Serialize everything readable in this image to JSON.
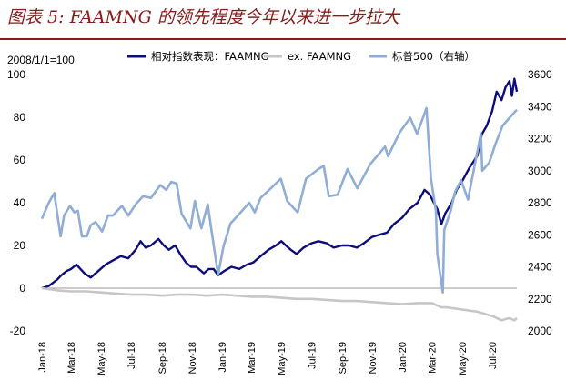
{
  "title": "图表 5: FAAMNG 的领先程度今年以来进一步拉大",
  "chart_data": {
    "type": "line",
    "unit_note": "2008/1/1=100",
    "left_axis": {
      "min": -20,
      "max": 100,
      "ticks": [
        -20,
        0,
        20,
        40,
        60,
        80,
        100
      ],
      "negative_color": "#c00000"
    },
    "right_axis": {
      "min": 2000,
      "max": 3600,
      "ticks": [
        2000,
        2200,
        2400,
        2600,
        2800,
        3000,
        3200,
        3400,
        3600
      ]
    },
    "x_ticks": [
      "Jan-18",
      "Mar-18",
      "May-18",
      "Jul-18",
      "Sep-18",
      "Nov-18",
      "Jan-19",
      "Mar-19",
      "May-19",
      "Jul-19",
      "Sep-19",
      "Nov-19",
      "Jan-20",
      "Mar-20",
      "May-20",
      "Jul-20"
    ],
    "x_range": [
      "2018-01-01",
      "2020-08-20"
    ],
    "legend_position": "top",
    "series": [
      {
        "name": "相对指数表现：FAAMNG",
        "axis": "left",
        "color": "#0d0d7a",
        "points": [
          [
            "2018-01-01",
            0
          ],
          [
            "2018-01-15",
            1
          ],
          [
            "2018-02-01",
            4
          ],
          [
            "2018-02-09",
            6
          ],
          [
            "2018-02-20",
            8
          ],
          [
            "2018-03-01",
            9
          ],
          [
            "2018-03-12",
            11
          ],
          [
            "2018-03-28",
            7
          ],
          [
            "2018-04-10",
            5
          ],
          [
            "2018-04-25",
            8
          ],
          [
            "2018-05-10",
            11
          ],
          [
            "2018-05-25",
            13
          ],
          [
            "2018-06-10",
            15
          ],
          [
            "2018-06-25",
            14
          ],
          [
            "2018-07-10",
            18
          ],
          [
            "2018-07-20",
            22
          ],
          [
            "2018-07-30",
            19
          ],
          [
            "2018-08-10",
            20
          ],
          [
            "2018-08-25",
            23
          ],
          [
            "2018-09-05",
            20
          ],
          [
            "2018-09-15",
            18
          ],
          [
            "2018-09-28",
            20
          ],
          [
            "2018-10-08",
            16
          ],
          [
            "2018-10-20",
            12
          ],
          [
            "2018-10-30",
            10
          ],
          [
            "2018-11-10",
            10
          ],
          [
            "2018-11-25",
            7
          ],
          [
            "2018-12-05",
            9
          ],
          [
            "2018-12-15",
            9
          ],
          [
            "2018-12-24",
            6
          ],
          [
            "2019-01-05",
            8
          ],
          [
            "2019-01-20",
            10
          ],
          [
            "2019-02-05",
            9
          ],
          [
            "2019-02-20",
            11
          ],
          [
            "2019-03-05",
            12
          ],
          [
            "2019-03-20",
            15
          ],
          [
            "2019-04-05",
            18
          ],
          [
            "2019-04-20",
            20
          ],
          [
            "2019-05-01",
            22
          ],
          [
            "2019-05-10",
            20
          ],
          [
            "2019-05-20",
            18
          ],
          [
            "2019-06-01",
            16
          ],
          [
            "2019-06-15",
            19
          ],
          [
            "2019-07-01",
            21
          ],
          [
            "2019-07-15",
            22
          ],
          [
            "2019-08-01",
            21
          ],
          [
            "2019-08-15",
            19
          ],
          [
            "2019-09-01",
            20
          ],
          [
            "2019-09-15",
            20
          ],
          [
            "2019-10-01",
            19
          ],
          [
            "2019-10-15",
            21
          ],
          [
            "2019-11-01",
            24
          ],
          [
            "2019-11-15",
            25
          ],
          [
            "2019-12-01",
            26
          ],
          [
            "2019-12-15",
            30
          ],
          [
            "2020-01-01",
            33
          ],
          [
            "2020-01-15",
            37
          ],
          [
            "2020-02-01",
            40
          ],
          [
            "2020-02-15",
            46
          ],
          [
            "2020-02-25",
            44
          ],
          [
            "2020-03-05",
            40
          ],
          [
            "2020-03-12",
            37
          ],
          [
            "2020-03-20",
            30
          ],
          [
            "2020-03-28",
            35
          ],
          [
            "2020-04-10",
            40
          ],
          [
            "2020-04-20",
            46
          ],
          [
            "2020-05-01",
            50
          ],
          [
            "2020-05-15",
            56
          ],
          [
            "2020-06-01",
            62
          ],
          [
            "2020-06-10",
            72
          ],
          [
            "2020-06-20",
            76
          ],
          [
            "2020-07-01",
            83
          ],
          [
            "2020-07-10",
            92
          ],
          [
            "2020-07-20",
            88
          ],
          [
            "2020-07-28",
            94
          ],
          [
            "2020-08-05",
            97
          ],
          [
            "2020-08-10",
            90
          ],
          [
            "2020-08-15",
            98
          ],
          [
            "2020-08-20",
            92
          ]
        ]
      },
      {
        "name": "ex. FAAMNG",
        "axis": "left",
        "color": "#c6c6c6",
        "points": [
          [
            "2018-01-01",
            0
          ],
          [
            "2018-02-01",
            -1
          ],
          [
            "2018-03-01",
            -1.5
          ],
          [
            "2018-04-01",
            -1.5
          ],
          [
            "2018-05-01",
            -2
          ],
          [
            "2018-06-01",
            -2.5
          ],
          [
            "2018-07-01",
            -3
          ],
          [
            "2018-08-01",
            -3
          ],
          [
            "2018-09-01",
            -3.5
          ],
          [
            "2018-10-01",
            -3
          ],
          [
            "2018-11-01",
            -3
          ],
          [
            "2018-12-01",
            -3.5
          ],
          [
            "2019-01-01",
            -3
          ],
          [
            "2019-02-01",
            -3.5
          ],
          [
            "2019-03-01",
            -4
          ],
          [
            "2019-04-01",
            -4
          ],
          [
            "2019-05-01",
            -4.5
          ],
          [
            "2019-06-01",
            -5
          ],
          [
            "2019-07-01",
            -5
          ],
          [
            "2019-08-01",
            -5.5
          ],
          [
            "2019-09-01",
            -6
          ],
          [
            "2019-10-01",
            -6
          ],
          [
            "2019-11-01",
            -6.5
          ],
          [
            "2019-12-01",
            -7
          ],
          [
            "2020-01-01",
            -7.5
          ],
          [
            "2020-02-01",
            -7
          ],
          [
            "2020-03-01",
            -7
          ],
          [
            "2020-03-20",
            -9
          ],
          [
            "2020-04-01",
            -9
          ],
          [
            "2020-05-01",
            -10
          ],
          [
            "2020-06-01",
            -11
          ],
          [
            "2020-07-01",
            -13
          ],
          [
            "2020-07-20",
            -15
          ],
          [
            "2020-08-05",
            -14
          ],
          [
            "2020-08-15",
            -15
          ],
          [
            "2020-08-20",
            -14
          ]
        ]
      },
      {
        "name": "标普500（右轴）",
        "axis": "right",
        "color": "#8fadd6",
        "points": [
          [
            "2018-01-01",
            2700
          ],
          [
            "2018-01-15",
            2800
          ],
          [
            "2018-01-26",
            2860
          ],
          [
            "2018-02-05",
            2650
          ],
          [
            "2018-02-08",
            2590
          ],
          [
            "2018-02-15",
            2720
          ],
          [
            "2018-02-27",
            2780
          ],
          [
            "2018-03-08",
            2740
          ],
          [
            "2018-03-15",
            2750
          ],
          [
            "2018-03-23",
            2590
          ],
          [
            "2018-04-02",
            2590
          ],
          [
            "2018-04-10",
            2660
          ],
          [
            "2018-04-20",
            2680
          ],
          [
            "2018-05-03",
            2620
          ],
          [
            "2018-05-15",
            2720
          ],
          [
            "2018-05-25",
            2720
          ],
          [
            "2018-06-12",
            2780
          ],
          [
            "2018-06-25",
            2720
          ],
          [
            "2018-07-10",
            2790
          ],
          [
            "2018-07-25",
            2840
          ],
          [
            "2018-08-10",
            2830
          ],
          [
            "2018-08-29",
            2910
          ],
          [
            "2018-09-10",
            2880
          ],
          [
            "2018-09-20",
            2930
          ],
          [
            "2018-10-01",
            2920
          ],
          [
            "2018-10-11",
            2730
          ],
          [
            "2018-10-29",
            2640
          ],
          [
            "2018-11-07",
            2810
          ],
          [
            "2018-11-20",
            2640
          ],
          [
            "2018-12-03",
            2790
          ],
          [
            "2018-12-10",
            2640
          ],
          [
            "2018-12-24",
            2350
          ],
          [
            "2019-01-04",
            2530
          ],
          [
            "2019-01-18",
            2670
          ],
          [
            "2019-02-05",
            2730
          ],
          [
            "2019-02-25",
            2800
          ],
          [
            "2019-03-08",
            2740
          ],
          [
            "2019-03-20",
            2830
          ],
          [
            "2019-04-10",
            2890
          ],
          [
            "2019-04-30",
            2950
          ],
          [
            "2019-05-13",
            2810
          ],
          [
            "2019-06-03",
            2740
          ],
          [
            "2019-06-20",
            2950
          ],
          [
            "2019-07-15",
            3010
          ],
          [
            "2019-07-26",
            3030
          ],
          [
            "2019-08-05",
            2840
          ],
          [
            "2019-08-23",
            2850
          ],
          [
            "2019-09-12",
            3010
          ],
          [
            "2019-10-02",
            2890
          ],
          [
            "2019-10-28",
            3040
          ],
          [
            "2019-11-27",
            3150
          ],
          [
            "2019-12-03",
            3090
          ],
          [
            "2019-12-27",
            3240
          ],
          [
            "2020-01-17",
            3330
          ],
          [
            "2020-01-31",
            3230
          ],
          [
            "2020-02-19",
            3390
          ],
          [
            "2020-02-28",
            2950
          ],
          [
            "2020-03-09",
            2750
          ],
          [
            "2020-03-12",
            2480
          ],
          [
            "2020-03-16",
            2390
          ],
          [
            "2020-03-23",
            2240
          ],
          [
            "2020-03-26",
            2630
          ],
          [
            "2020-04-08",
            2750
          ],
          [
            "2020-04-17",
            2870
          ],
          [
            "2020-04-29",
            2940
          ],
          [
            "2020-05-13",
            2820
          ],
          [
            "2020-06-08",
            3230
          ],
          [
            "2020-06-11",
            3000
          ],
          [
            "2020-06-25",
            3050
          ],
          [
            "2020-07-08",
            3170
          ],
          [
            "2020-07-22",
            3280
          ],
          [
            "2020-08-05",
            3330
          ],
          [
            "2020-08-20",
            3380
          ]
        ]
      }
    ]
  }
}
